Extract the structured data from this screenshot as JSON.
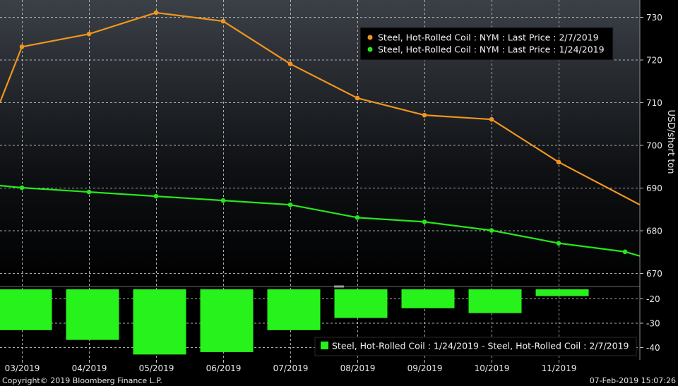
{
  "chart_data": [
    {
      "type": "line",
      "ylabel": "USD/short ton",
      "ylim": [
        665,
        733
      ],
      "yticks": [
        670,
        680,
        690,
        700,
        710,
        720,
        730
      ],
      "grid": true,
      "legend_position": "top-right",
      "categories": [
        "03/2019",
        "04/2019",
        "05/2019",
        "06/2019",
        "07/2019",
        "08/2019",
        "09/2019",
        "10/2019",
        "11/2019"
      ],
      "series": [
        {
          "name": "Steel, Hot-Rolled Coil : NYM : Last Price : 2/7/2019",
          "color": "#f0961e",
          "lead_value": 710,
          "values": [
            723,
            726,
            731,
            729,
            719,
            711,
            707,
            706,
            696
          ],
          "trail_value": 686
        },
        {
          "name": "Steel, Hot-Rolled Coil : NYM : Last Price : 1/24/2019",
          "color": "#27e61b",
          "lead_value": 690.5,
          "values": [
            690,
            689,
            688,
            687,
            686,
            683,
            682,
            680,
            677
          ],
          "trail_values": [
            675,
            674
          ]
        }
      ]
    },
    {
      "type": "bar",
      "ylim": [
        -45,
        -15
      ],
      "yticks": [
        -20,
        -30,
        -40
      ],
      "grid": true,
      "legend_position": "bottom-right",
      "categories": [
        "03/2019",
        "04/2019",
        "05/2019",
        "06/2019",
        "07/2019",
        "08/2019",
        "09/2019",
        "10/2019",
        "11/2019"
      ],
      "series": [
        {
          "name": "Steel, Hot-Rolled Coil : 1/24/2019 - Steel, Hot-Rolled Coil : 2/7/2019",
          "color": "#27f21b",
          "values": [
            -33,
            -37,
            -43,
            -42,
            -33,
            -28,
            -24,
            -26,
            -19
          ]
        }
      ]
    }
  ],
  "footer": {
    "copyright": "Copyright© 2019 Bloomberg Finance L.P.",
    "timestamp": "07-Feb-2019 15:07:26"
  }
}
